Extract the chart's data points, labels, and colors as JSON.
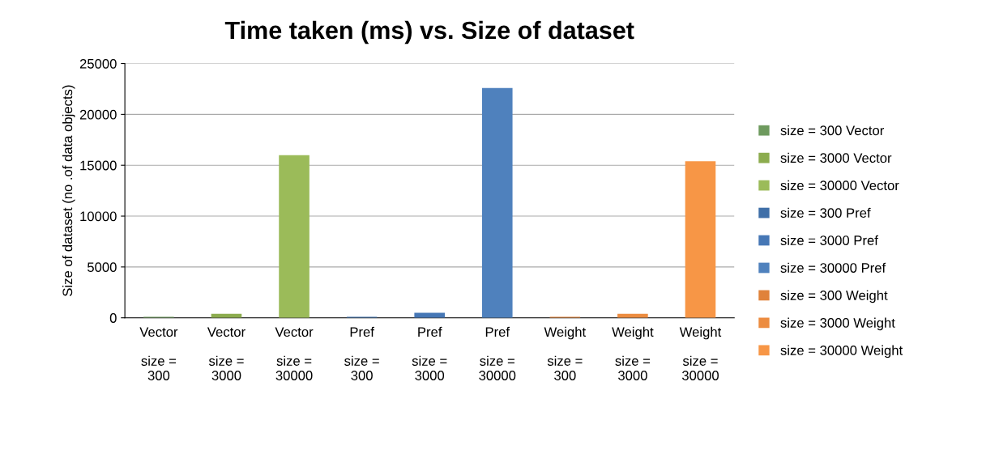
{
  "chart_data": {
    "type": "bar",
    "title": "Time taken (ms) vs. Size of dataset",
    "ylabel": "Size of dataset (no .of data objects)",
    "categories": [
      "Vector\n\nsize =\n300",
      "Vector\n\nsize =\n3000",
      "Vector\n\nsize =\n30000",
      "Pref\n\nsize =\n300",
      "Pref\n\nsize =\n3000",
      "Pref\n\nsize =\n30000",
      "Weight\n\nsize =\n300",
      "Weight\n\nsize =\n3000",
      "Weight\n\nsize =\n30000"
    ],
    "series": [
      {
        "name": "size = 300 Vector",
        "color": "#6e9a5e",
        "values": [
          100,
          null,
          null,
          null,
          null,
          null,
          null,
          null,
          null
        ]
      },
      {
        "name": "size = 3000 Vector",
        "color": "#8cac4e",
        "values": [
          null,
          400,
          null,
          null,
          null,
          null,
          null,
          null,
          null
        ]
      },
      {
        "name": "size = 30000 Vector",
        "color": "#9bbb59",
        "values": [
          null,
          null,
          16000,
          null,
          null,
          null,
          null,
          null,
          null
        ]
      },
      {
        "name": "size = 300 Pref",
        "color": "#3f6fa8",
        "values": [
          null,
          null,
          null,
          100,
          null,
          null,
          null,
          null,
          null
        ]
      },
      {
        "name": "size = 3000 Pref",
        "color": "#4677b5",
        "values": [
          null,
          null,
          null,
          null,
          500,
          null,
          null,
          null,
          null
        ]
      },
      {
        "name": "size = 30000 Pref",
        "color": "#4f81bd",
        "values": [
          null,
          null,
          null,
          null,
          null,
          22600,
          null,
          null,
          null
        ]
      },
      {
        "name": "size = 300 Weight",
        "color": "#e0823a",
        "values": [
          null,
          null,
          null,
          null,
          null,
          null,
          100,
          null,
          null
        ]
      },
      {
        "name": "size = 3000 Weight",
        "color": "#ec8c40",
        "values": [
          null,
          null,
          null,
          null,
          null,
          null,
          null,
          400,
          null
        ]
      },
      {
        "name": "size = 30000 Weight",
        "color": "#f79646",
        "values": [
          null,
          null,
          null,
          null,
          null,
          null,
          null,
          null,
          15400
        ]
      }
    ],
    "ylim": [
      0,
      25000
    ],
    "yticks": [
      0,
      5000,
      10000,
      15000,
      20000,
      25000
    ],
    "grid": "y",
    "legend": "right"
  }
}
